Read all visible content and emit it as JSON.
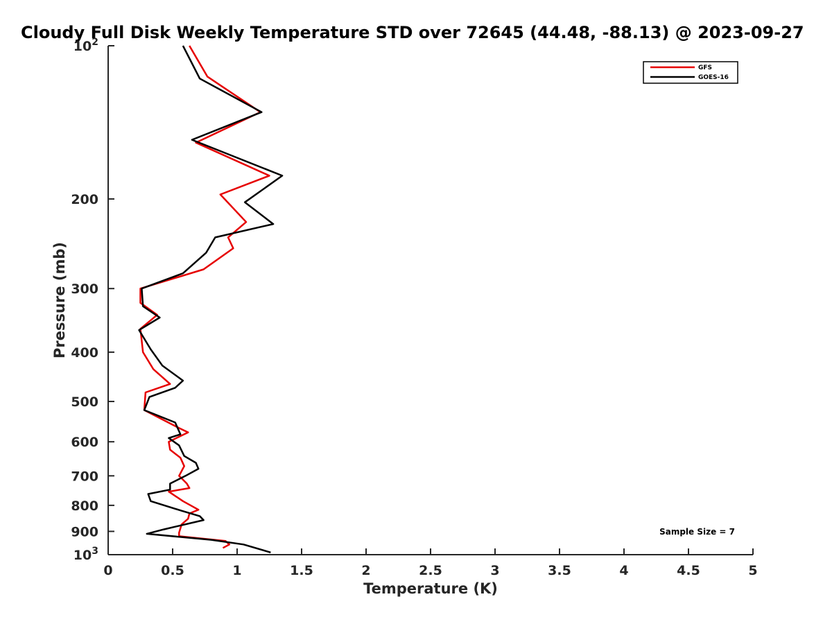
{
  "chart_data": {
    "type": "line",
    "title": "Cloudy Full Disk Weekly Temperature STD over 72645 (44.48, -88.13) @ 2023-09-27",
    "xlabel": "Temperature (K)",
    "ylabel": "Pressure (mb)",
    "xlim": [
      0,
      5
    ],
    "ylim": [
      100,
      1000
    ],
    "y_scale": "log",
    "y_reversed": true,
    "grid": false,
    "legend_position": "top-right",
    "x_ticks": [
      {
        "value": 0,
        "label": "0"
      },
      {
        "value": 0.5,
        "label": "0.5"
      },
      {
        "value": 1,
        "label": "1"
      },
      {
        "value": 1.5,
        "label": "1.5"
      },
      {
        "value": 2,
        "label": "2"
      },
      {
        "value": 2.5,
        "label": "2.5"
      },
      {
        "value": 3,
        "label": "3"
      },
      {
        "value": 3.5,
        "label": "3.5"
      },
      {
        "value": 4,
        "label": "4"
      },
      {
        "value": 4.5,
        "label": "4.5"
      },
      {
        "value": 5,
        "label": "5"
      }
    ],
    "y_ticks": [
      {
        "value": 100,
        "base": "10",
        "exp": "2"
      },
      {
        "value": 200,
        "label": "200"
      },
      {
        "value": 300,
        "label": "300"
      },
      {
        "value": 400,
        "label": "400"
      },
      {
        "value": 500,
        "label": "500"
      },
      {
        "value": 600,
        "label": "600"
      },
      {
        "value": 700,
        "label": "700"
      },
      {
        "value": 800,
        "label": "800"
      },
      {
        "value": 900,
        "label": "900"
      },
      {
        "value": 1000,
        "base": "10",
        "exp": "3"
      }
    ],
    "series": [
      {
        "name": "GFS",
        "color": "#e60000",
        "points": [
          [
            0.63,
            100
          ],
          [
            0.77,
            115
          ],
          [
            1.18,
            135
          ],
          [
            0.68,
            155
          ],
          [
            1.25,
            180
          ],
          [
            0.87,
            196
          ],
          [
            1.07,
            222
          ],
          [
            0.93,
            238
          ],
          [
            0.97,
            250
          ],
          [
            0.74,
            275
          ],
          [
            0.25,
            300
          ],
          [
            0.25,
            320
          ],
          [
            0.38,
            338
          ],
          [
            0.25,
            360
          ],
          [
            0.27,
            400
          ],
          [
            0.35,
            432
          ],
          [
            0.48,
            462
          ],
          [
            0.29,
            480
          ],
          [
            0.28,
            520
          ],
          [
            0.55,
            564
          ],
          [
            0.62,
            575
          ],
          [
            0.47,
            600
          ],
          [
            0.48,
            622
          ],
          [
            0.56,
            645
          ],
          [
            0.59,
            670
          ],
          [
            0.55,
            700
          ],
          [
            0.61,
            725
          ],
          [
            0.63,
            740
          ],
          [
            0.47,
            752
          ],
          [
            0.58,
            785
          ],
          [
            0.7,
            816
          ],
          [
            0.63,
            830
          ],
          [
            0.62,
            850
          ],
          [
            0.57,
            872
          ],
          [
            0.55,
            905
          ],
          [
            0.55,
            920
          ],
          [
            0.91,
            940
          ],
          [
            0.94,
            955
          ],
          [
            0.89,
            970
          ]
        ]
      },
      {
        "name": "GOES-16",
        "color": "#000000",
        "points": [
          [
            0.58,
            100
          ],
          [
            0.71,
            116
          ],
          [
            1.19,
            135
          ],
          [
            0.65,
            153
          ],
          [
            1.35,
            180
          ],
          [
            1.06,
            203
          ],
          [
            1.28,
            224
          ],
          [
            0.83,
            238
          ],
          [
            0.76,
            255
          ],
          [
            0.58,
            280
          ],
          [
            0.26,
            300
          ],
          [
            0.27,
            325
          ],
          [
            0.4,
            342
          ],
          [
            0.24,
            362
          ],
          [
            0.33,
            395
          ],
          [
            0.42,
            425
          ],
          [
            0.58,
            455
          ],
          [
            0.52,
            470
          ],
          [
            0.32,
            490
          ],
          [
            0.28,
            520
          ],
          [
            0.52,
            550
          ],
          [
            0.56,
            580
          ],
          [
            0.47,
            590
          ],
          [
            0.55,
            610
          ],
          [
            0.59,
            640
          ],
          [
            0.68,
            660
          ],
          [
            0.7,
            678
          ],
          [
            0.6,
            700
          ],
          [
            0.48,
            725
          ],
          [
            0.48,
            745
          ],
          [
            0.31,
            760
          ],
          [
            0.33,
            785
          ],
          [
            0.57,
            820
          ],
          [
            0.71,
            840
          ],
          [
            0.74,
            855
          ],
          [
            0.43,
            892
          ],
          [
            0.3,
            910
          ],
          [
            0.8,
            935
          ],
          [
            1.05,
            955
          ],
          [
            1.26,
            990
          ]
        ]
      }
    ],
    "annotation": "Sample Size = 7"
  }
}
